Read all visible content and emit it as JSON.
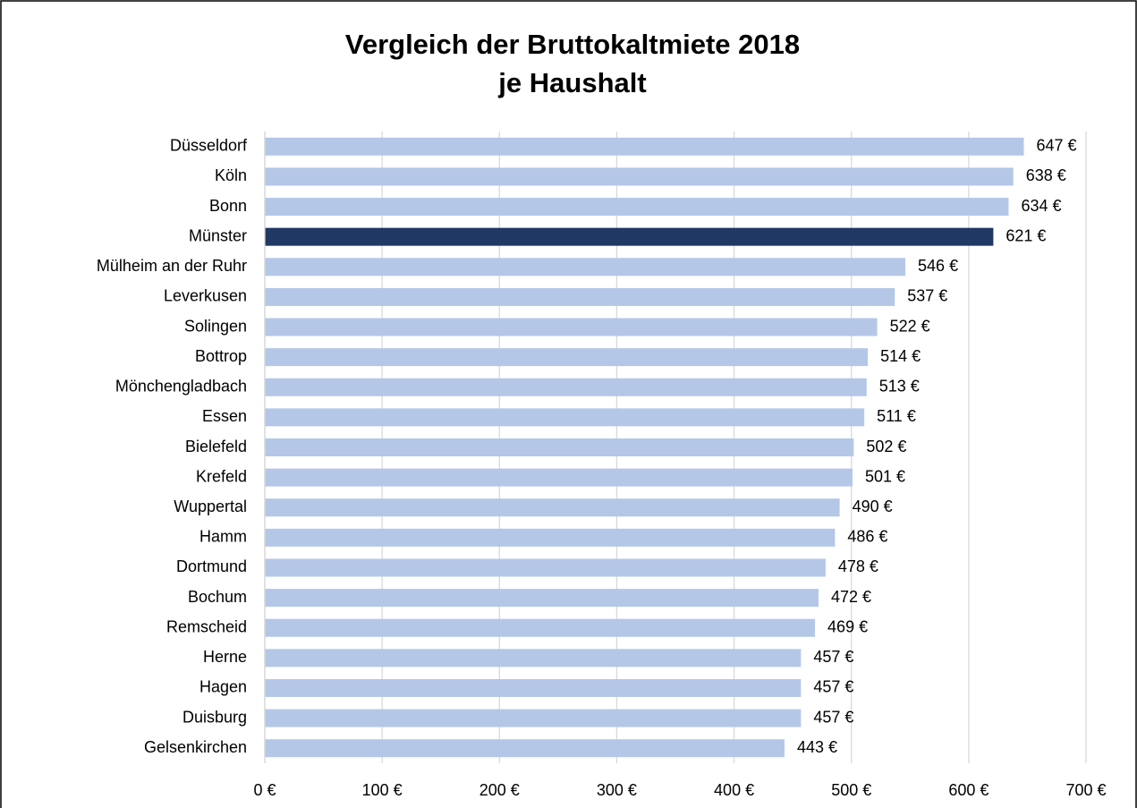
{
  "chart_data": {
    "type": "barh",
    "title": [
      "Vergleich der Bruttokaltmiete 2018",
      "je Haushalt"
    ],
    "categories": [
      "Düsseldorf",
      "Köln",
      "Bonn",
      "Münster",
      "Mülheim an der Ruhr",
      "Leverkusen",
      "Solingen",
      "Bottrop",
      "Mönchengladbach",
      "Essen",
      "Bielefeld",
      "Krefeld",
      "Wuppertal",
      "Hamm",
      "Dortmund",
      "Bochum",
      "Remscheid",
      "Herne",
      "Hagen",
      "Duisburg",
      "Gelsenkirchen"
    ],
    "values": [
      647,
      638,
      634,
      621,
      546,
      537,
      522,
      514,
      513,
      511,
      502,
      501,
      490,
      486,
      478,
      472,
      469,
      457,
      457,
      457,
      443
    ],
    "value_labels": [
      "647 €",
      "638 €",
      "634 €",
      "621 €",
      "546 €",
      "537 €",
      "522 €",
      "514 €",
      "513 €",
      "511 €",
      "502 €",
      "501 €",
      "490 €",
      "486 €",
      "478 €",
      "472 €",
      "469 €",
      "457 €",
      "457 €",
      "457 €",
      "443 €"
    ],
    "colors": [
      "#b4c7e7",
      "#b4c7e7",
      "#b4c7e7",
      "#203864",
      "#b4c7e7",
      "#b4c7e7",
      "#b4c7e7",
      "#b4c7e7",
      "#b4c7e7",
      "#b4c7e7",
      "#b4c7e7",
      "#b4c7e7",
      "#b4c7e7",
      "#b4c7e7",
      "#b4c7e7",
      "#b4c7e7",
      "#b4c7e7",
      "#b4c7e7",
      "#b4c7e7",
      "#b4c7e7",
      "#b4c7e7"
    ],
    "xlim": [
      0,
      700
    ],
    "xticks": [
      {
        "value": 0,
        "label": "0 €"
      },
      {
        "value": 100,
        "label": "100 €"
      },
      {
        "value": 200,
        "label": "200 €"
      },
      {
        "value": 300,
        "label": "300 €"
      },
      {
        "value": 400,
        "label": "400 €"
      },
      {
        "value": 500,
        "label": "500 €"
      },
      {
        "value": 600,
        "label": "600 €"
      },
      {
        "value": 700,
        "label": "700 €"
      }
    ],
    "grid": true
  }
}
